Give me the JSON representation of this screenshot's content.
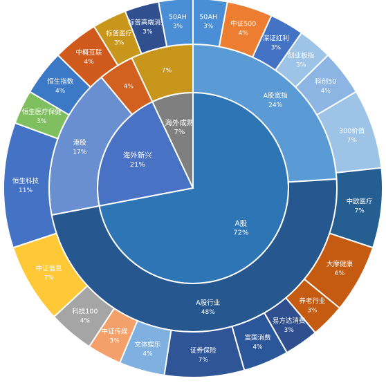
{
  "chart_data": {
    "type": "sunburst",
    "title": "",
    "start_angle_deg": 0,
    "direction": "clockwise",
    "rings": [
      {
        "level": 0,
        "segments": [
          {
            "name": "A股",
            "label": "72%",
            "value": 72,
            "color": "#2e75b6"
          },
          {
            "name": "海外新兴",
            "label": "21%",
            "value": 21,
            "color": "#4a72c4"
          },
          {
            "name": "海外成熟",
            "label": "7%",
            "value": 7,
            "color": "#7f7f7f"
          }
        ]
      },
      {
        "level": 1,
        "segments": [
          {
            "name": "A股宽指",
            "label": "24%",
            "value": 24,
            "color": "#5b9bd5"
          },
          {
            "name": "A股行业",
            "label": "48%",
            "value": 48,
            "color": "#26588f"
          },
          {
            "name": "港股",
            "label": "17%",
            "value": 17,
            "color": "#6a8fd1"
          },
          {
            "name": "",
            "label": "4%",
            "value": 4,
            "color": "#d2611f"
          },
          {
            "name": "",
            "label": "7%",
            "value": 7,
            "color": "#c9961c"
          }
        ]
      },
      {
        "level": 2,
        "segments": [
          {
            "name": "50AH",
            "label": "3%",
            "value": 3,
            "color": "#4a8fd6"
          },
          {
            "name": "中证500",
            "label": "4%",
            "value": 4,
            "color": "#ed7d31"
          },
          {
            "name": "深证红利",
            "label": "3%",
            "value": 3,
            "color": "#4472c4"
          },
          {
            "name": "创业板指",
            "label": "3%",
            "value": 3,
            "color": "#9dc3e6"
          },
          {
            "name": "科创50",
            "label": "4%",
            "value": 4,
            "color": "#8db5e3"
          },
          {
            "name": "300价值",
            "label": "7%",
            "value": 7,
            "color": "#9dc3e6"
          },
          {
            "name": "中欧医疗",
            "label": "7%",
            "value": 7,
            "color": "#255e91"
          },
          {
            "name": "大摩健康",
            "label": "6%",
            "value": 6,
            "color": "#c55a11"
          },
          {
            "name": "养老行业",
            "label": "3%",
            "value": 3,
            "color": "#c55a11"
          },
          {
            "name": "易方达消费",
            "label": "3%",
            "value": 3,
            "color": "#2f4f8f"
          },
          {
            "name": "富国消费",
            "label": "4%",
            "value": 4,
            "color": "#2b579a"
          },
          {
            "name": "证券保险",
            "label": "7%",
            "value": 7,
            "color": "#2f5597"
          },
          {
            "name": "文体娱乐",
            "label": "4%",
            "value": 4,
            "color": "#7fb0e0"
          },
          {
            "name": "中证传媒",
            "label": "3%",
            "value": 3,
            "color": "#f4a06a"
          },
          {
            "name": "科技100",
            "label": "4%",
            "value": 4,
            "color": "#a5a5a5"
          },
          {
            "name": "中证信息",
            "label": "7%",
            "value": 7,
            "color": "#ffc836"
          },
          {
            "name": "恒生科技",
            "label": "11%",
            "value": 11,
            "color": "#4472c4"
          },
          {
            "name": "恒生医疗保健",
            "label": "3%",
            "value": 3,
            "color": "#7fbf5f"
          },
          {
            "name": "恒生指数",
            "label": "4%",
            "value": 4,
            "color": "#3b78c6"
          },
          {
            "name": "中概互联",
            "label": "4%",
            "value": 4,
            "color": "#d05a1c"
          },
          {
            "name": "标普医疗",
            "label": "3%",
            "value": 3,
            "color": "#c9961c"
          },
          {
            "name": "标普高端消费",
            "label": "3%",
            "value": 3,
            "color": "#2f4f8f"
          },
          {
            "name": "50AH",
            "label": "3%",
            "value": 3,
            "color": "#4a8fd6"
          }
        ]
      }
    ]
  }
}
